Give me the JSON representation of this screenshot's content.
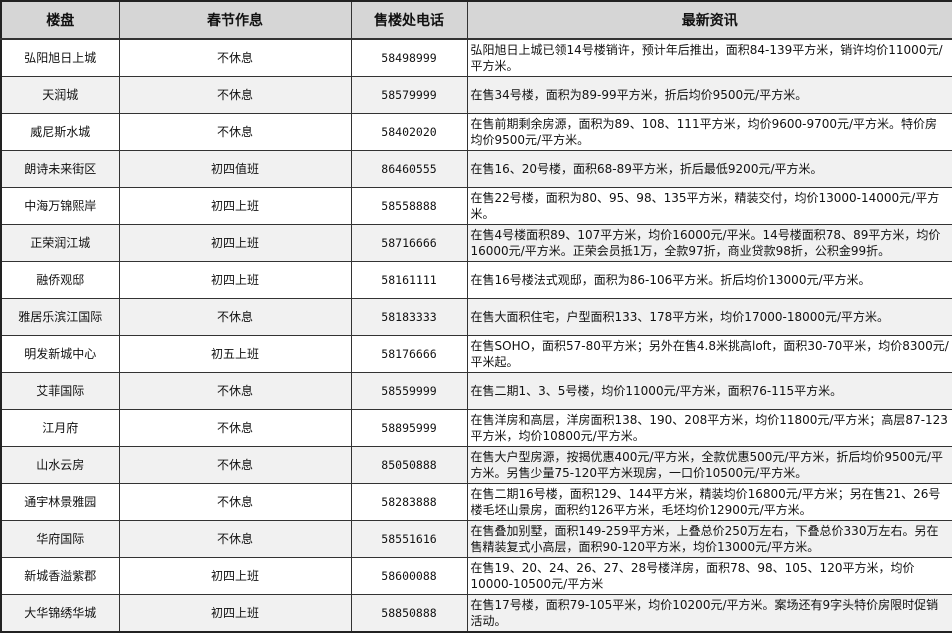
{
  "headers": [
    "楼盘",
    "春节作息",
    "售楼处电话",
    "最新资讯"
  ],
  "rows": [
    {
      "name": "弘阳旭日上城",
      "schedule": "不休息",
      "phone": "58498999",
      "info": "弘阳旭日上城已领14号楼销许，预计年后推出，面积84-139平方米，销许均价11000元/平方米。"
    },
    {
      "name": "天润城",
      "schedule": "不休息",
      "phone": "58579999",
      "info": "在售34号楼，面积为89-99平方米，折后均价9500元/平方米。"
    },
    {
      "name": "威尼斯水城",
      "schedule": "不休息",
      "phone": "58402020",
      "info": "在售前期剩余房源，面积为89、108、111平方米，均价9600-9700元/平方米。特价房均价9500元/平方米。"
    },
    {
      "name": "朗诗未来街区",
      "schedule": "初四值班",
      "phone": "86460555",
      "info": "在售16、20号楼，面积68-89平方米，折后最低9200元/平方米。"
    },
    {
      "name": "中海万锦熙岸",
      "schedule": "初四上班",
      "phone": "58558888",
      "info": "在售22号楼，面积为80、95、98、135平方米，精装交付，均价13000-14000元/平方米。"
    },
    {
      "name": "正荣润江城",
      "schedule": "初四上班",
      "phone": "58716666",
      "info": "在售4号楼面积89、107平方米，均价16000元/平米。14号楼面积78、89平方米，均价16000元/平方米。正荣会员抵1万，全款97折，商业贷款98折，公积金99折。"
    },
    {
      "name": "融侨观邸",
      "schedule": "初四上班",
      "phone": "58161111",
      "info": "在售16号楼法式观邸，面积为86-106平方米。折后均价13000元/平方米。"
    },
    {
      "name": "雅居乐滨江国际",
      "schedule": "不休息",
      "phone": "58183333",
      "info": "在售大面积住宅，户型面积133、178平方米，均价17000-18000元/平方米。"
    },
    {
      "name": "明发新城中心",
      "schedule": "初五上班",
      "phone": "58176666",
      "info": "在售SOHO，面积57-80平方米；另外在售4.8米挑高loft，面积30-70平米，均价8300元/平米起。"
    },
    {
      "name": "艾菲国际",
      "schedule": "不休息",
      "phone": "58559999",
      "info": "在售二期1、3、5号楼，均价11000元/平方米，面积76-115平方米。"
    },
    {
      "name": "江月府",
      "schedule": "不休息",
      "phone": "58895999",
      "info": "在售洋房和高层，洋房面积138、190、208平方米，均价11800元/平方米；高层87-123平方米，均价10800元/平方米。"
    },
    {
      "name": "山水云房",
      "schedule": "不休息",
      "phone": "85050888",
      "info": "在售大户型房源，按揭优惠400元/平方米，全款优惠500元/平方米，折后均价9500元/平方米。另售少量75-120平方米现房，一口价10500元/平方米。"
    },
    {
      "name": "通宇林景雅园",
      "schedule": "不休息",
      "phone": "58283888",
      "info": "在售二期16号楼，面积129、144平方米，精装均价16800元/平方米；另在售21、26号楼毛坯山景房，面积约126平方米，毛坯均价12900元/平方米。"
    },
    {
      "name": "华府国际",
      "schedule": "不休息",
      "phone": "58551616",
      "info": "在售叠加别墅，面积149-259平方米，上叠总价250万左右，下叠总价330万左右。另在售精装复式小高层，面积90-120平方米，均价13000元/平方米。"
    },
    {
      "name": "新城香溢紫郡",
      "schedule": "初四上班",
      "phone": "58600088",
      "info": "在售19、20、24、26、27、28号楼洋房，面积78、98、105、120平方米，均价10000-10500元/平方米"
    },
    {
      "name": "大华锦绣华城",
      "schedule": "初四上班",
      "phone": "58850888",
      "info": "在售17号楼，面积79-105平米，均价10200元/平方米。案场还有9字头特价房限时促销活动。"
    }
  ]
}
